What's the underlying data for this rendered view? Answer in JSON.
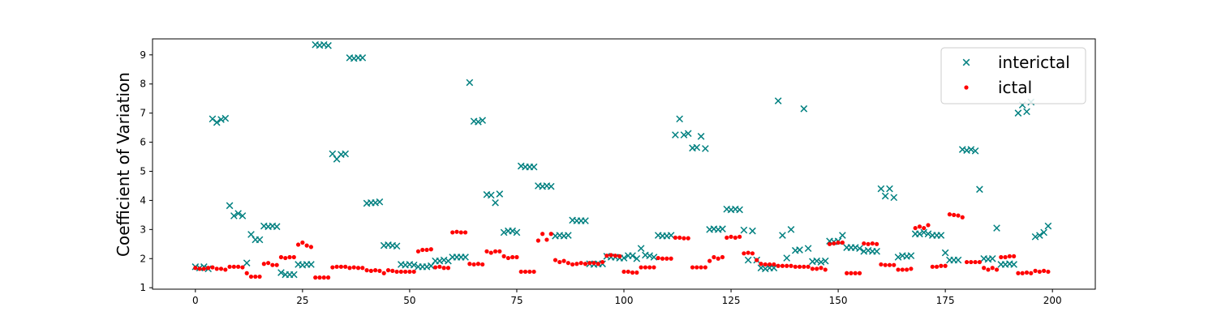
{
  "chart_data": {
    "type": "scatter",
    "title": "",
    "xlabel": "",
    "ylabel": "Coefficient of Variation",
    "xlim": [
      -10,
      210
    ],
    "ylim": [
      0.95,
      9.55
    ],
    "xticks": [
      0,
      25,
      50,
      75,
      100,
      125,
      150,
      175,
      200
    ],
    "yticks": [
      1,
      2,
      3,
      4,
      5,
      6,
      7,
      8,
      9
    ],
    "legend_position": "top-right",
    "series": [
      {
        "name": "interictal",
        "marker": "x",
        "color": "#008080",
        "x": [
          0,
          1,
          2,
          3,
          4,
          5,
          6,
          7,
          8,
          9,
          10,
          11,
          12,
          13,
          14,
          15,
          16,
          17,
          18,
          19,
          20,
          21,
          22,
          23,
          24,
          25,
          26,
          27,
          28,
          29,
          30,
          31,
          32,
          33,
          34,
          35,
          36,
          37,
          38,
          39,
          40,
          41,
          42,
          43,
          44,
          45,
          46,
          47,
          48,
          49,
          50,
          51,
          52,
          53,
          54,
          55,
          56,
          57,
          58,
          59,
          60,
          61,
          62,
          63,
          64,
          65,
          66,
          67,
          68,
          69,
          70,
          71,
          72,
          73,
          74,
          75,
          76,
          77,
          78,
          79,
          80,
          81,
          82,
          83,
          84,
          85,
          86,
          87,
          88,
          89,
          90,
          91,
          92,
          93,
          94,
          95,
          96,
          97,
          98,
          99,
          100,
          101,
          102,
          103,
          104,
          105,
          106,
          107,
          108,
          109,
          110,
          111,
          112,
          113,
          114,
          115,
          116,
          117,
          118,
          119,
          120,
          121,
          122,
          123,
          124,
          125,
          126,
          127,
          128,
          129,
          130,
          131,
          132,
          133,
          134,
          135,
          136,
          137,
          138,
          139,
          140,
          141,
          142,
          143,
          144,
          145,
          146,
          147,
          148,
          149,
          150,
          151,
          152,
          153,
          154,
          155,
          156,
          157,
          158,
          159,
          160,
          161,
          162,
          163,
          164,
          165,
          166,
          167,
          168,
          169,
          170,
          171,
          172,
          173,
          174,
          175,
          176,
          177,
          178,
          179,
          180,
          181,
          182,
          183,
          184,
          185,
          186,
          187,
          188,
          189,
          190,
          191,
          192,
          193,
          194,
          195,
          196,
          197,
          198,
          199
        ],
        "y": [
          1.72,
          1.68,
          1.72,
          1.65,
          6.8,
          6.68,
          6.78,
          6.82,
          3.82,
          3.47,
          3.55,
          3.47,
          1.85,
          2.83,
          2.65,
          2.65,
          3.12,
          3.1,
          3.12,
          3.1,
          1.52,
          1.45,
          1.45,
          1.45,
          1.8,
          1.78,
          1.8,
          1.8,
          9.35,
          9.33,
          9.35,
          9.32,
          5.6,
          5.42,
          5.58,
          5.6,
          8.9,
          8.88,
          8.9,
          8.9,
          3.9,
          3.92,
          3.92,
          3.95,
          2.45,
          2.47,
          2.45,
          2.43,
          1.8,
          1.78,
          1.8,
          1.78,
          1.72,
          1.72,
          1.72,
          1.75,
          1.92,
          1.92,
          1.95,
          1.92,
          2.05,
          2.05,
          2.05,
          2.05,
          8.05,
          6.72,
          6.7,
          6.75,
          4.2,
          4.18,
          3.92,
          4.22,
          2.9,
          2.95,
          2.95,
          2.9,
          5.18,
          5.15,
          5.15,
          5.15,
          4.5,
          4.48,
          4.5,
          4.48,
          2.78,
          2.8,
          2.78,
          2.8,
          3.32,
          3.3,
          3.3,
          3.3,
          1.82,
          1.8,
          1.82,
          1.82,
          2.08,
          2.05,
          2.05,
          2.02,
          2.02,
          2.1,
          2.1,
          2.0,
          2.35,
          2.12,
          2.1,
          2.05,
          2.8,
          2.78,
          2.78,
          2.8,
          6.25,
          6.8,
          6.25,
          6.3,
          5.8,
          5.82,
          6.2,
          5.78,
          3.0,
          3.02,
          3.0,
          3.02,
          3.7,
          3.68,
          3.7,
          3.68,
          2.98,
          1.95,
          2.95,
          1.95,
          1.68,
          1.65,
          1.68,
          1.68,
          7.42,
          2.8,
          2.02,
          3.0,
          2.28,
          2.3,
          7.15,
          2.35,
          1.9,
          1.92,
          1.88,
          1.92,
          2.6,
          2.58,
          2.6,
          2.8,
          2.38,
          2.38,
          2.38,
          2.35,
          2.25,
          2.28,
          2.25,
          2.25,
          4.4,
          4.15,
          4.4,
          4.1,
          2.05,
          2.1,
          2.08,
          2.1,
          2.85,
          2.85,
          2.9,
          2.85,
          2.8,
          2.8,
          2.8,
          2.2,
          1.95,
          1.95,
          1.95,
          5.75,
          5.72,
          5.75,
          5.7,
          4.38,
          2.0,
          1.98,
          2.0,
          3.05,
          1.8,
          1.8,
          1.82,
          1.8,
          7.0,
          7.28,
          7.05,
          7.38,
          2.75,
          2.8,
          2.9,
          3.12
        ]
      },
      {
        "name": "ictal",
        "marker": "dot",
        "color": "#ff0000",
        "x": [
          0,
          1,
          2,
          3,
          4,
          5,
          6,
          7,
          8,
          9,
          10,
          11,
          12,
          13,
          14,
          15,
          16,
          17,
          18,
          19,
          20,
          21,
          22,
          23,
          24,
          25,
          26,
          27,
          28,
          29,
          30,
          31,
          32,
          33,
          34,
          35,
          36,
          37,
          38,
          39,
          40,
          41,
          42,
          43,
          44,
          45,
          46,
          47,
          48,
          49,
          50,
          51,
          52,
          53,
          54,
          55,
          56,
          57,
          58,
          59,
          60,
          61,
          62,
          63,
          64,
          65,
          66,
          67,
          68,
          69,
          70,
          71,
          72,
          73,
          74,
          75,
          76,
          77,
          78,
          79,
          80,
          81,
          82,
          83,
          84,
          85,
          86,
          87,
          88,
          89,
          90,
          91,
          92,
          93,
          94,
          95,
          96,
          97,
          98,
          99,
          100,
          101,
          102,
          103,
          104,
          105,
          106,
          107,
          108,
          109,
          110,
          111,
          112,
          113,
          114,
          115,
          116,
          117,
          118,
          119,
          120,
          121,
          122,
          123,
          124,
          125,
          126,
          127,
          128,
          129,
          130,
          131,
          132,
          133,
          134,
          135,
          136,
          137,
          138,
          139,
          140,
          141,
          142,
          143,
          144,
          145,
          146,
          147,
          148,
          149,
          150,
          151,
          152,
          153,
          154,
          155,
          156,
          157,
          158,
          159,
          160,
          161,
          162,
          163,
          164,
          165,
          166,
          167,
          168,
          169,
          170,
          171,
          172,
          173,
          174,
          175,
          176,
          177,
          178,
          179,
          180,
          181,
          182,
          183,
          184,
          185,
          186,
          187,
          188,
          189,
          190,
          191,
          192,
          193,
          194,
          195,
          196,
          197,
          198,
          199
        ],
        "y": [
          1.68,
          1.65,
          1.65,
          1.68,
          1.7,
          1.65,
          1.65,
          1.62,
          1.72,
          1.72,
          1.72,
          1.7,
          1.5,
          1.38,
          1.38,
          1.38,
          1.82,
          1.85,
          1.78,
          1.78,
          2.05,
          2.02,
          2.05,
          2.05,
          2.48,
          2.55,
          2.45,
          2.4,
          1.35,
          1.35,
          1.35,
          1.35,
          1.7,
          1.72,
          1.72,
          1.72,
          1.68,
          1.7,
          1.68,
          1.68,
          1.6,
          1.58,
          1.6,
          1.58,
          1.5,
          1.6,
          1.58,
          1.55,
          1.55,
          1.55,
          1.55,
          1.55,
          2.25,
          2.3,
          2.3,
          2.32,
          1.7,
          1.72,
          1.68,
          1.68,
          2.9,
          2.92,
          2.9,
          2.9,
          1.82,
          1.8,
          1.82,
          1.8,
          2.25,
          2.2,
          2.25,
          2.25,
          2.08,
          2.02,
          2.05,
          2.05,
          1.55,
          1.55,
          1.55,
          1.55,
          2.62,
          2.85,
          2.65,
          2.85,
          1.95,
          1.88,
          1.92,
          1.85,
          1.8,
          1.82,
          1.85,
          1.82,
          1.85,
          1.85,
          1.82,
          1.88,
          2.1,
          2.12,
          2.1,
          2.08,
          1.55,
          1.55,
          1.52,
          1.52,
          1.7,
          1.7,
          1.7,
          1.7,
          2.02,
          2.0,
          2.0,
          2.0,
          2.72,
          2.72,
          2.7,
          2.7,
          1.7,
          1.7,
          1.7,
          1.7,
          1.92,
          2.05,
          2.0,
          2.05,
          2.72,
          2.75,
          2.72,
          2.75,
          2.18,
          2.2,
          2.18,
          1.95,
          1.82,
          1.8,
          1.8,
          1.8,
          1.75,
          1.75,
          1.75,
          1.75,
          1.72,
          1.72,
          1.72,
          1.72,
          1.65,
          1.65,
          1.68,
          1.62,
          2.5,
          2.52,
          2.55,
          2.55,
          1.5,
          1.5,
          1.5,
          1.5,
          2.52,
          2.5,
          2.52,
          2.5,
          1.8,
          1.78,
          1.78,
          1.78,
          1.62,
          1.62,
          1.62,
          1.65,
          3.05,
          3.1,
          3.05,
          3.15,
          1.72,
          1.72,
          1.75,
          1.75,
          3.52,
          3.5,
          3.48,
          3.42,
          1.88,
          1.88,
          1.88,
          1.88,
          1.68,
          1.62,
          1.68,
          1.62,
          2.05,
          2.05,
          2.08,
          2.08,
          1.5,
          1.5,
          1.52,
          1.5,
          1.58,
          1.55,
          1.58,
          1.55
        ]
      }
    ]
  }
}
